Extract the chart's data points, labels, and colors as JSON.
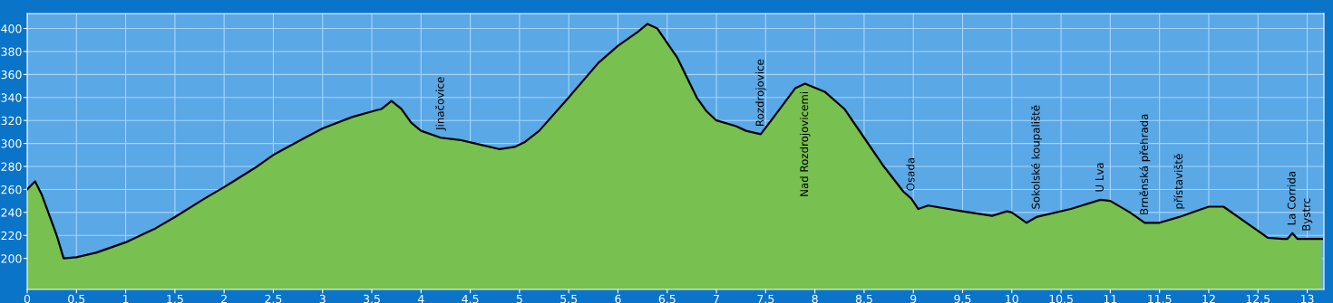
{
  "chart_data": {
    "type": "area",
    "x": [
      0,
      0.08,
      0.15,
      0.3,
      0.37,
      0.5,
      0.7,
      1.0,
      1.3,
      1.5,
      1.8,
      2.0,
      2.3,
      2.5,
      2.8,
      3.0,
      3.3,
      3.55,
      3.6,
      3.7,
      3.8,
      3.9,
      4.0,
      4.2,
      4.4,
      4.6,
      4.8,
      4.95,
      5.05,
      5.2,
      5.5,
      5.8,
      6.0,
      6.2,
      6.3,
      6.4,
      6.6,
      6.8,
      6.9,
      7.0,
      7.2,
      7.3,
      7.45,
      7.6,
      7.8,
      7.9,
      8.1,
      8.3,
      8.5,
      8.7,
      8.9,
      8.98,
      9.05,
      9.15,
      9.5,
      9.8,
      9.95,
      10.0,
      10.15,
      10.25,
      10.6,
      10.9,
      11.0,
      11.2,
      11.35,
      11.5,
      11.7,
      11.9,
      12.0,
      12.15,
      12.4,
      12.6,
      12.75,
      12.8,
      12.85,
      12.9,
      13.0,
      13.15
    ],
    "series": [
      {
        "color": "#78c050",
        "values": [
          260,
          267,
          255,
          220,
          200,
          201,
          205,
          214,
          226,
          236,
          252,
          262,
          278,
          290,
          304,
          313,
          323,
          329,
          330,
          337,
          330,
          318,
          311,
          305,
          303,
          299,
          295,
          297,
          301,
          311,
          340,
          370,
          385,
          397,
          404,
          400,
          375,
          340,
          328,
          320,
          315,
          311,
          308,
          325,
          348,
          352,
          345,
          330,
          305,
          280,
          258,
          252,
          243,
          246,
          241,
          237,
          241,
          240,
          231,
          236,
          243,
          251,
          250,
          240,
          231,
          231,
          236,
          242,
          245,
          245,
          230,
          218,
          217,
          217,
          222,
          217,
          217,
          217
        ]
      }
    ],
    "annotations": [
      {
        "text": "Jinačovice",
        "x": 4.2,
        "y": 305
      },
      {
        "text": "Rozdrojovice",
        "x": 7.45,
        "y": 308
      },
      {
        "text": "Nad Rozdrojovicemi",
        "x": 7.9,
        "y": 352
      },
      {
        "text": "Osada",
        "x": 8.98,
        "y": 252
      },
      {
        "text": "Sokolské koupaliště",
        "x": 10.25,
        "y": 236
      },
      {
        "text": "U Lva",
        "x": 10.9,
        "y": 251
      },
      {
        "text": "Brněnská přehrada",
        "x": 11.35,
        "y": 231
      },
      {
        "text": "přístaviště",
        "x": 11.7,
        "y": 236
      },
      {
        "text": "La Corrida",
        "x": 12.85,
        "y": 222
      },
      {
        "text": "Bystrc",
        "x": 13.0,
        "y": 217
      }
    ],
    "xlim": [
      0,
      13.17
    ],
    "ylim": [
      173,
      413
    ],
    "xticks": [
      0,
      0.5,
      1,
      1.5,
      2,
      2.5,
      3,
      3.5,
      4,
      4.5,
      5,
      5.5,
      6,
      6.5,
      7,
      7.5,
      8,
      8.5,
      9,
      9.5,
      10,
      10.5,
      11,
      11.5,
      12,
      12.5,
      13
    ],
    "yticks": [
      200,
      220,
      240,
      260,
      280,
      300,
      320,
      340,
      360,
      380,
      400
    ],
    "grid": true,
    "line_style": "solid"
  }
}
